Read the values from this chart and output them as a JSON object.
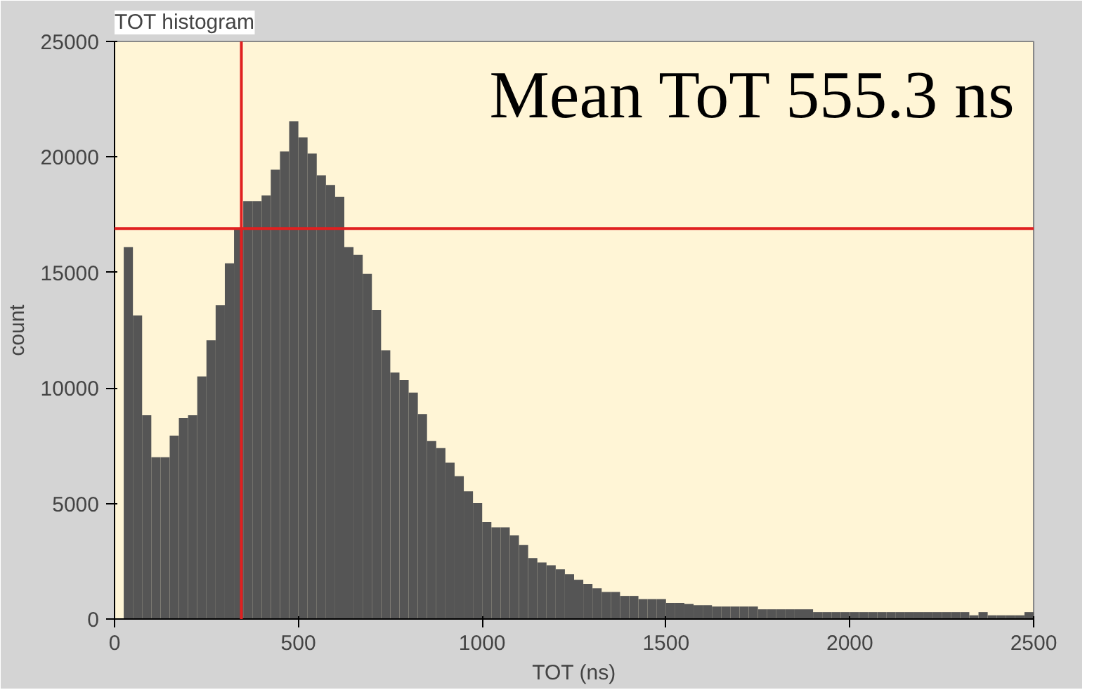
{
  "chart_data": {
    "type": "histogram",
    "title": "TOT histogram",
    "xlabel": "TOT (ns)",
    "ylabel": "count",
    "color": "#555555",
    "bins": [
      0,
      25,
      50,
      75,
      100,
      125,
      150,
      175,
      200,
      225,
      250,
      275,
      300,
      325,
      350,
      375,
      400,
      425,
      450,
      475,
      500,
      525,
      550,
      575,
      600,
      625,
      650,
      675,
      700,
      725,
      750,
      775,
      800,
      825,
      850,
      875,
      900,
      925,
      950,
      975,
      1000,
      1025,
      1050,
      1075,
      1100,
      1125,
      1150,
      1175,
      1200,
      1225,
      1250,
      1275,
      1300,
      1325,
      1350,
      1375,
      1400,
      1425,
      1450,
      1475,
      1500,
      1525,
      1550,
      1575,
      1600,
      1625,
      1650,
      1675,
      1700,
      1725,
      1750,
      1775,
      1800,
      1825,
      1850,
      1875,
      1900,
      1925,
      1950,
      1975,
      2000,
      2025,
      2050,
      2075,
      2100,
      2125,
      2150,
      2175,
      2200,
      2225,
      2250,
      2275,
      2300,
      2325,
      2350,
      2375,
      2400,
      2425,
      2450,
      2475,
      2500
    ],
    "values": [
      0,
      16100,
      13140,
      8820,
      7000,
      7000,
      7940,
      8700,
      8820,
      10500,
      12070,
      13590,
      15400,
      16930,
      18090,
      18090,
      18330,
      19450,
      20240,
      21550,
      20850,
      20150,
      19210,
      18790,
      18280,
      16100,
      15760,
      14940,
      13380,
      11630,
      10670,
      10340,
      9800,
      8870,
      7700,
      7400,
      6770,
      6180,
      5530,
      5020,
      4200,
      3970,
      3970,
      3620,
      3200,
      2640,
      2450,
      2330,
      2150,
      1940,
      1700,
      1520,
      1330,
      1170,
      1170,
      1000,
      1000,
      860,
      860,
      860,
      700,
      700,
      650,
      600,
      600,
      540,
      540,
      540,
      540,
      540,
      420,
      420,
      420,
      420,
      420,
      420,
      300,
      300,
      300,
      300,
      300,
      300,
      300,
      300,
      300,
      300,
      300,
      300,
      300,
      300,
      300,
      300,
      300,
      160,
      300,
      160,
      160,
      160,
      160,
      300
    ],
    "xlim": [
      0,
      2500
    ],
    "ylim": [
      0,
      25000
    ],
    "xticks": [
      0,
      500,
      1000,
      1500,
      2000,
      2500
    ],
    "yticks": [
      0,
      5000,
      10000,
      15000,
      20000,
      25000
    ],
    "ref_lines": [
      {
        "axis": "x",
        "value": 345,
        "color": "#e02020"
      },
      {
        "axis": "y",
        "value": 16900,
        "color": "#e02020"
      }
    ],
    "annotations": [
      "Mean ToT 555.3 ns"
    ]
  }
}
